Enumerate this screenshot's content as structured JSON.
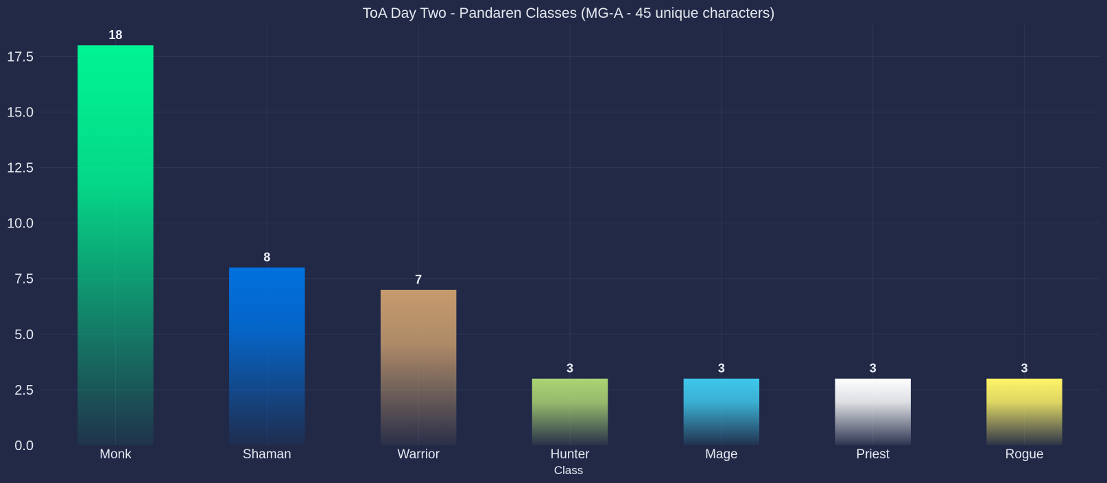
{
  "chart_data": {
    "type": "bar",
    "title": "ToA Day Two - Pandaren Classes (MG-A - 45 unique characters)",
    "xlabel": "Class",
    "ylabel": "",
    "categories": [
      "Monk",
      "Shaman",
      "Warrior",
      "Hunter",
      "Mage",
      "Priest",
      "Rogue"
    ],
    "values": [
      18,
      8,
      7,
      3,
      3,
      3,
      3
    ],
    "value_labels": [
      "18",
      "8",
      "7",
      "3",
      "3",
      "3",
      "3"
    ],
    "colors": [
      "#00f593",
      "#0070de",
      "#c69b6d",
      "#abd473",
      "#3fc7eb",
      "#ffffff",
      "#fff468"
    ],
    "yticks": [
      "0.0",
      "2.5",
      "5.0",
      "7.5",
      "10.0",
      "12.5",
      "15.0",
      "17.5"
    ],
    "ylim": [
      0,
      18.9
    ],
    "grid": true,
    "background": "#212947"
  }
}
